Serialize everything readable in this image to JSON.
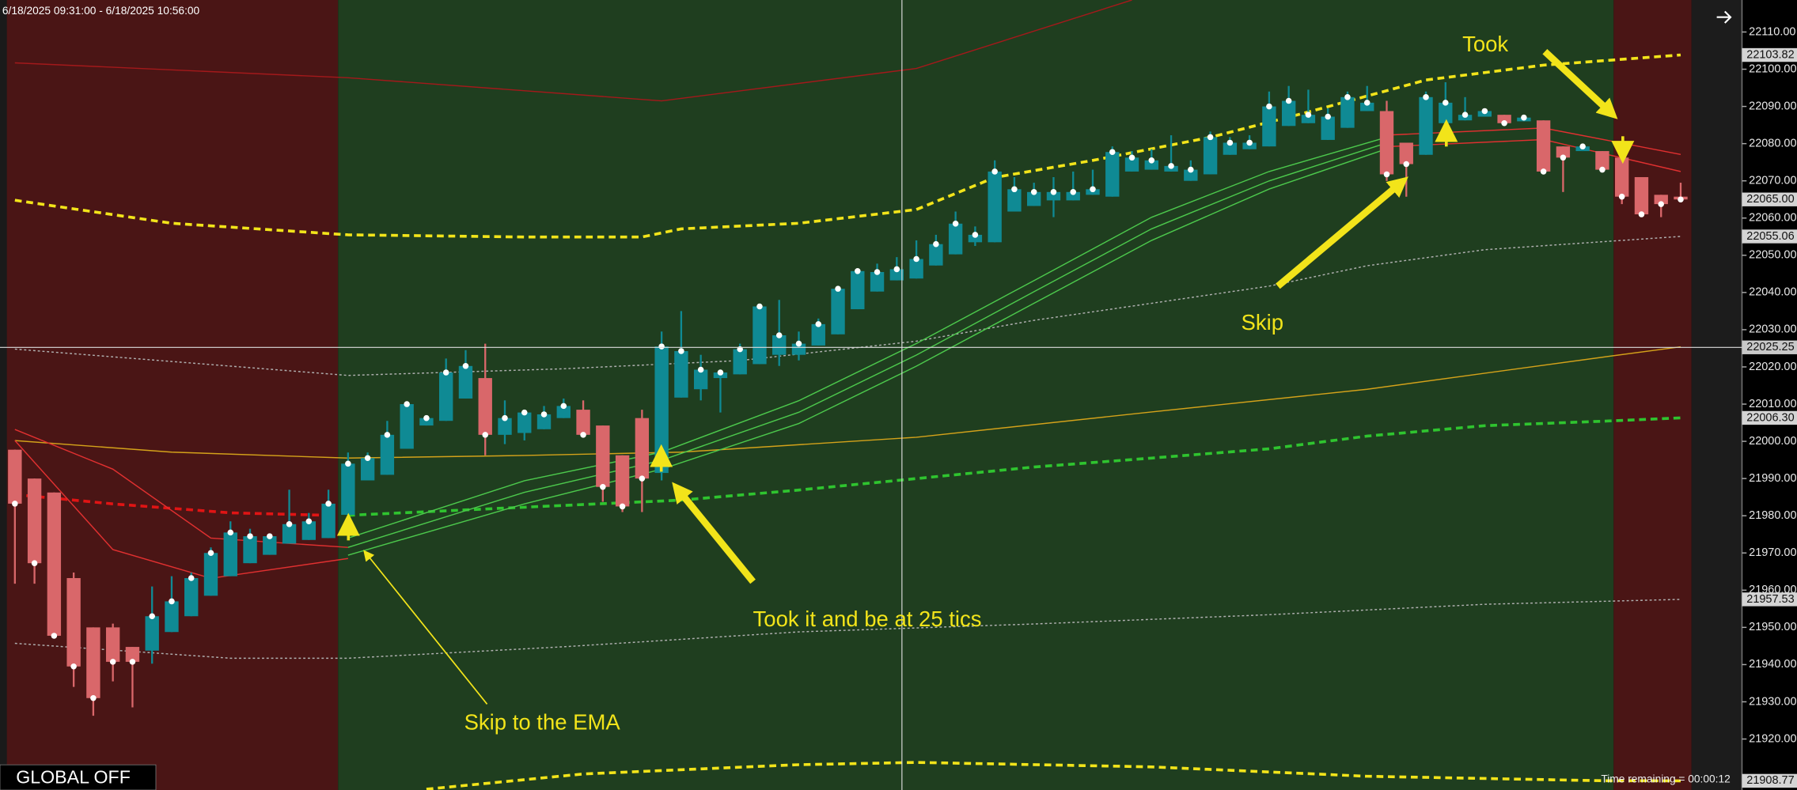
{
  "header": {
    "range": "6/18/2025 09:31:00 - 6/18/2025 10:56:00"
  },
  "status": {
    "global": "GLOBAL OFF",
    "time_remaining": "Time remaining = 00:00:12"
  },
  "chart_data": {
    "type": "candlestick",
    "up_color": "#0f8a94",
    "down_color": "#d9676a",
    "open": [
      21997.75,
      21990,
      21986.25,
      21963.25,
      21950,
      21950,
      21944.75,
      21943.75,
      21948.75,
      21953,
      21958.5,
      21963.75,
      21967.25,
      21969.5,
      21972.5,
      21973.5,
      21974,
      21980.25,
      21989.5,
      21991,
      21998,
      22004.25,
      22005.5,
      22011.5,
      22017,
      22001.75,
      22002.25,
      22003.25,
      22006.25,
      22008.5,
      22004.25,
      21996.25,
      22006.25,
      21991.5,
      22011.75,
      22014,
      22017,
      22018,
      22020.75,
      22023.25,
      22023.25,
      22025.75,
      22028.75,
      22035.5,
      22040.25,
      22043.25,
      22043.75,
      22047.25,
      22050.25,
      22053.5,
      22053.5,
      22061.75,
      22063.25,
      22064.75,
      22064.75,
      22066.25,
      22065.75,
      22072.5,
      22073,
      22072.5,
      22070,
      22071.75,
      22077,
      22078.5,
      22079.25,
      22084.75,
      22085.5,
      22081,
      22084.25,
      22088.75,
      22088.75,
      22080.25,
      22077,
      22085.5,
      22086.25,
      22087.25,
      22087.75,
      22086,
      22086.25,
      22079.25,
      22078,
      22078,
      22076.25,
      22071,
      22066.25,
      22065.75
    ],
    "high": [
      21997.75,
      21990,
      21986.25,
      21964.75,
      21950,
      21951,
      21944.75,
      21961,
      21963.75,
      21964.75,
      21971.5,
      21978.5,
      21976.5,
      21974.5,
      21987,
      21980.75,
      21987,
      21997,
      21997,
      22005.5,
      22010,
      22006.25,
      22022.25,
      22024.5,
      22026.25,
      22011,
      22007.75,
      22009.5,
      22011.5,
      22011,
      22004.25,
      21996.25,
      22008.5,
      22029.5,
      22035,
      22023.25,
      22018.5,
      22026.25,
      22037,
      22038,
      22029.5,
      22033,
      22041,
      22046.25,
      22047.75,
      22049.5,
      22054,
      22055.5,
      22061.75,
      22057.75,
      22075.5,
      22071,
      22069.5,
      22071,
      22072.5,
      22073,
      22079.25,
      22078,
      22078.5,
      22082.25,
      22075.5,
      22083.25,
      22081.75,
      22082.25,
      22094,
      22095.5,
      22094.5,
      22089.5,
      22094,
      22095.5,
      22091.5,
      22080.25,
      22094,
      22096.5,
      22092.5,
      22088.75,
      22087.75,
      22087,
      22086.25,
      22079.25,
      22079.25,
      22078,
      22076.25,
      22071,
      22066.25,
      22069.5
    ],
    "low": [
      21961.75,
      21961.75,
      21947.75,
      21934,
      21926.25,
      21935.5,
      21928.5,
      21940.25,
      21948.75,
      21953,
      21958.5,
      21963.75,
      21967.25,
      21969.5,
      21972.5,
      21973.5,
      21974,
      21980.25,
      21989.5,
      21991,
      21998,
      22004.25,
      22005.5,
      22011.5,
      21996.25,
      21999.25,
      22000.25,
      22003.25,
      22006.25,
      22001.75,
      21983.75,
      21981,
      21981,
      21989.5,
      22011.75,
      22011,
      22007.75,
      22018,
      22020.75,
      22020.25,
      22021.75,
      22025.75,
      22028.75,
      22035.5,
      22040.25,
      22043.25,
      22043.75,
      22047.25,
      22050.25,
      22052.5,
      22053.5,
      22061.75,
      22063.25,
      22060.25,
      22064.75,
      22066.25,
      22065.75,
      22072.5,
      22073,
      22072.5,
      22070,
      22071.75,
      22077,
      22078.5,
      22079.25,
      22084.75,
      22085.5,
      22081,
      22084.25,
      22088.75,
      22070,
      22065.75,
      22077,
      22085.5,
      22086.25,
      22087.25,
      22085.5,
      22086,
      22072.5,
      22067,
      22078,
      22073,
      22063.75,
      22061,
      22060.25,
      22064.75
    ],
    "close": [
      21983.25,
      21967.25,
      21947.75,
      21939.5,
      21931,
      21940.75,
      21940.75,
      21953,
      21957,
      21963.25,
      21970,
      21975.5,
      21974.5,
      21974.5,
      21977.75,
      21978.5,
      21983.25,
      21994,
      21995.5,
      22001.75,
      22010,
      22006.25,
      22018.5,
      22020.25,
      22001.75,
      22006.25,
      22007.75,
      22007.25,
      22009.5,
      22001.75,
      21987.75,
      21982.5,
      21990,
      22025.5,
      22024.25,
      22019.25,
      22018.5,
      22024.75,
      22036.25,
      22028.5,
      22026.25,
      22031.5,
      22041,
      22045.75,
      22045.5,
      22046.25,
      22049,
      22053,
      22058.5,
      22055.5,
      22072.5,
      22067.75,
      22067,
      22067,
      22067,
      22067.75,
      22077.75,
      22076.25,
      22075.5,
      22074,
      22073,
      22081.75,
      22080.25,
      22080.25,
      22090,
      22091.5,
      22087.75,
      22087.25,
      22092.5,
      22091,
      22071.75,
      22074.5,
      22092.5,
      22091,
      22087.75,
      22088.75,
      22085.5,
      22087,
      22072.5,
      22076.25,
      22079.25,
      22073,
      22065.75,
      22061,
      22063.75,
      22065
    ],
    "ylim": [
      21906.3,
      22118.6
    ],
    "yticks": [
      {
        "value": 22110,
        "label": "22110.00"
      },
      {
        "value": 22100,
        "label": "22100.00"
      },
      {
        "value": 22090,
        "label": "22090.00"
      },
      {
        "value": 22080,
        "label": "22080.00"
      },
      {
        "value": 22070,
        "label": "22070.00"
      },
      {
        "value": 22060,
        "label": "22060.00"
      },
      {
        "value": 22050,
        "label": "22050.00"
      },
      {
        "value": 22040,
        "label": "22040.00"
      },
      {
        "value": 22030,
        "label": "22030.00"
      },
      {
        "value": 22020,
        "label": "22020.00"
      },
      {
        "value": 22010,
        "label": "22010.00"
      },
      {
        "value": 22000,
        "label": "22000.00"
      },
      {
        "value": 21990,
        "label": "21990.00"
      },
      {
        "value": 21980,
        "label": "21980.00"
      },
      {
        "value": 21970,
        "label": "21970.00"
      },
      {
        "value": 21960,
        "label": "21960.00"
      },
      {
        "value": 21950,
        "label": "21950.00"
      },
      {
        "value": 21940,
        "label": "21940.00"
      },
      {
        "value": 21930,
        "label": "21930.00"
      },
      {
        "value": 21920,
        "label": "21920.00"
      }
    ],
    "price_markers": [
      {
        "value": 22103.82,
        "label": "22103.82"
      },
      {
        "value": 22065,
        "label": "22065.00"
      },
      {
        "value": 22055.06,
        "label": "22055.06"
      },
      {
        "value": 22006.3,
        "label": "22006.30"
      },
      {
        "value": 21957.53,
        "label": "21957.53"
      },
      {
        "value": 21908.77,
        "label": "21908.77"
      }
    ],
    "crosshair": {
      "value": 22025.25,
      "label": "22025.25"
    },
    "overlays": [
      {
        "color": "#a3191b",
        "width": 1,
        "dash": "none",
        "x": [
          0,
          17,
          33,
          46,
          57
        ],
        "values": [
          22101.7,
          22097.7,
          22091.5,
          22100.2,
          22118.6
        ]
      },
      {
        "color": "#f2e41a",
        "width": 2.5,
        "dash": "6 4",
        "x": [
          0,
          8,
          17,
          26,
          32,
          34,
          40,
          46,
          50,
          55,
          61,
          66,
          72,
          78,
          85
        ],
        "values": [
          22064.8,
          22058.6,
          22055.5,
          22054.9,
          22054.9,
          22057.1,
          22058.6,
          22062.3,
          22070.9,
          22075.5,
          22081.7,
          22088.5,
          22097.1,
          22101.1,
          22103.82
        ]
      },
      {
        "color": "#f2e41a",
        "width": 2.5,
        "dash": "6 4",
        "x": [
          21,
          29,
          40,
          46,
          58,
          69,
          81,
          85
        ],
        "values": [
          21906.5,
          21910.6,
          21913.1,
          21913.7,
          21912.5,
          21910,
          21908.8,
          21908.77
        ]
      },
      {
        "color": "#e01414",
        "width": 2.5,
        "dash": "6 4",
        "x": [
          0,
          5,
          11,
          16
        ],
        "values": [
          21985.7,
          21983.2,
          21980.8,
          21980.1
        ]
      },
      {
        "color": "#2fc42f",
        "width": 2.5,
        "dash": "6 4",
        "x": [
          17,
          26,
          34,
          40,
          46,
          52,
          58,
          64,
          69,
          75,
          81,
          85
        ],
        "values": [
          21980.1,
          21982.3,
          21984.2,
          21986.9,
          21990,
          21993.1,
          21995.5,
          21998,
          22001.4,
          22004.2,
          22005.4,
          22006.3
        ]
      },
      {
        "color": "#d4a21a",
        "width": 1,
        "dash": "none",
        "x": [
          0,
          8,
          17,
          26,
          34,
          46,
          58,
          69,
          81,
          85
        ],
        "values": [
          22000.2,
          21997.1,
          21995.5,
          21996.2,
          21997.1,
          22001.1,
          22007.9,
          22014,
          22022.6,
          22025.4
        ]
      },
      {
        "color": "#b0b0b0",
        "width": 1,
        "dash": "2 2",
        "x": [
          0,
          17,
          28,
          37,
          46,
          52,
          58,
          64,
          69,
          75,
          85
        ],
        "values": [
          22024.8,
          22017.7,
          22019.5,
          22021.7,
          22026.9,
          22032.5,
          22037.1,
          22041.7,
          22047.2,
          22051.5,
          22055.06
        ]
      },
      {
        "color": "#b0b0b0",
        "width": 1,
        "dash": "2 2",
        "x": [
          0,
          11,
          17,
          28,
          40,
          52,
          64,
          75,
          85
        ],
        "values": [
          21945.7,
          21941.7,
          21941.7,
          21944.8,
          21948.8,
          21950.9,
          21953.4,
          21956.2,
          21957.53
        ]
      },
      {
        "color": "#e03030",
        "width": 1,
        "dash": "none",
        "x": [
          0,
          5,
          10,
          17
        ],
        "values": [
          22003.2,
          21992.5,
          21974,
          21971.5
        ]
      },
      {
        "color": "#e03030",
        "width": 1,
        "dash": "none",
        "x": [
          0,
          5,
          10,
          17
        ],
        "values": [
          22000.2,
          21970.9,
          21963.2,
          21968.5
        ]
      },
      {
        "color": "#4cc84c",
        "width": 1,
        "dash": "none",
        "x": [
          17,
          26,
          33,
          40,
          46,
          52,
          58,
          64,
          70
        ],
        "values": [
          21974,
          21989.4,
          21997.1,
          22010.9,
          22026.3,
          22043.2,
          22060.2,
          22072.5,
          22081.7
        ]
      },
      {
        "color": "#4cc84c",
        "width": 1,
        "dash": "none",
        "x": [
          17,
          26,
          33,
          40,
          46,
          52,
          58,
          64,
          70
        ],
        "values": [
          21971.5,
          21986.3,
          21994.9,
          22007.8,
          22023.2,
          22040.2,
          22057.1,
          22070,
          22080.2
        ]
      },
      {
        "color": "#4cc84c",
        "width": 1,
        "dash": "none",
        "x": [
          17,
          26,
          33,
          40,
          46,
          52,
          58,
          64,
          70
        ],
        "values": [
          21969.4,
          21983.2,
          21992.5,
          22004.8,
          22020.2,
          22037.1,
          22054,
          22067.8,
          22078.6
        ]
      },
      {
        "color": "#e03030",
        "width": 1,
        "dash": "none",
        "x": [
          70,
          78,
          85
        ],
        "values": [
          22082.3,
          22084.2,
          22077.1
        ]
      },
      {
        "color": "#e03030",
        "width": 1,
        "dash": "none",
        "x": [
          70,
          78,
          85
        ],
        "values": [
          22079.2,
          22081.1,
          22072.5
        ]
      }
    ],
    "annotations": [
      "Took",
      "Skip",
      "Took it and be at 25 tics",
      "Skip to the EMA"
    ]
  }
}
